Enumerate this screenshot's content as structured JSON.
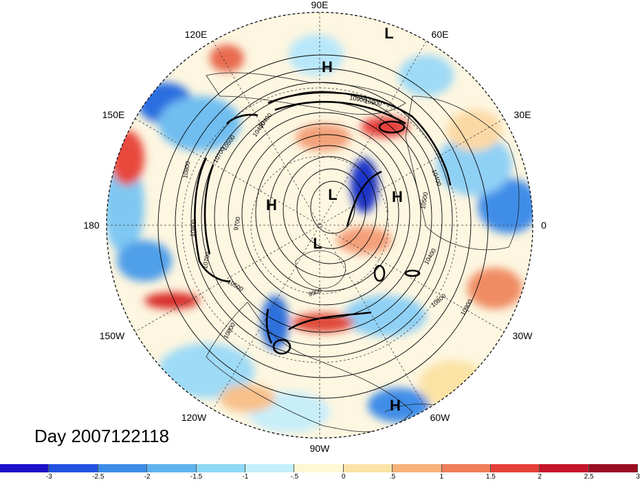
{
  "map": {
    "title": "Day 2007122118",
    "longitude_labels": [
      "90E",
      "60E",
      "30E",
      "0",
      "30W",
      "60W",
      "90W",
      "120W",
      "150W",
      "180",
      "150E",
      "120E"
    ],
    "pressure_centers": [
      "L",
      "H",
      "L",
      "H",
      "H",
      "L",
      "H"
    ],
    "contour_labels": [
      "10900",
      "10500",
      "10400",
      "9700",
      "10400",
      "10800",
      "9900",
      "10800",
      "10800",
      "10700",
      "10500",
      "10900",
      "10500",
      "10800",
      "10900",
      "10400",
      "10400",
      "10700"
    ]
  },
  "colorbar": {
    "colors": [
      "#1c10c8",
      "#2253e0",
      "#3c8de8",
      "#5eb3ef",
      "#8fd9f5",
      "#c4f0fa",
      "#fdf9d6",
      "#fbe3a6",
      "#f8b27a",
      "#f07d59",
      "#e5413a",
      "#c4152a",
      "#9a0c22"
    ],
    "labels": [
      "-3",
      "-2.5",
      "-2",
      "-1.5",
      "-1",
      "-.5",
      "0",
      ".5",
      "1",
      "1.5",
      "2",
      "2.5",
      "3"
    ]
  }
}
